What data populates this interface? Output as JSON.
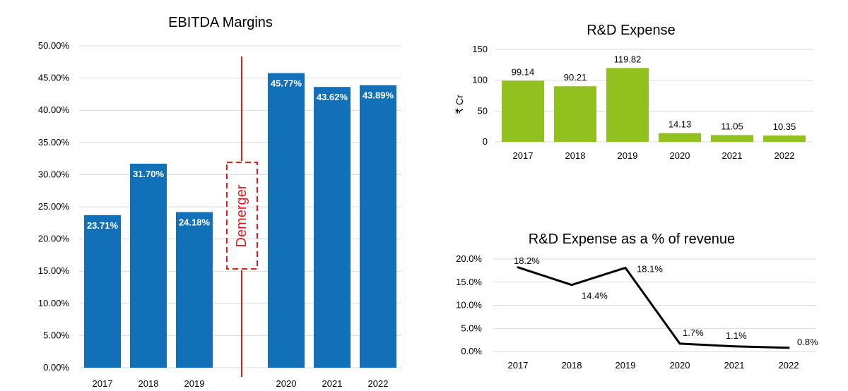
{
  "chart_data": [
    {
      "type": "bar",
      "title": "EBITDA Margins",
      "categories": [
        "2017",
        "2018",
        "2019",
        "2020",
        "2021",
        "2022"
      ],
      "values": [
        23.71,
        31.7,
        24.18,
        45.77,
        43.62,
        43.89
      ],
      "data_labels": [
        "23.71%",
        "31.70%",
        "24.18%",
        "45.77%",
        "43.62%",
        "43.89%"
      ],
      "ylim": [
        0,
        50
      ],
      "yticks": [
        "0.00%",
        "5.00%",
        "10.00%",
        "15.00%",
        "20.00%",
        "25.00%",
        "30.00%",
        "35.00%",
        "40.00%",
        "45.00%",
        "50.00%"
      ],
      "grid": true,
      "bar_color": "#1170B8",
      "annotation": {
        "text": "Demerger",
        "color": "#E8191B",
        "position": "between 2019 and 2020"
      }
    },
    {
      "type": "bar",
      "title": "R&D Expense",
      "ylabel": "₹ Cr",
      "categories": [
        "2017",
        "2018",
        "2019",
        "2020",
        "2021",
        "2022"
      ],
      "values": [
        99.14,
        90.21,
        119.82,
        14.13,
        11.05,
        10.35
      ],
      "data_labels": [
        "99.14",
        "90.21",
        "119.82",
        "14.13",
        "11.05",
        "10.35"
      ],
      "ylim": [
        0,
        150
      ],
      "yticks": [
        "0",
        "50",
        "100",
        "150"
      ],
      "grid": true,
      "bar_color": "#92C01F"
    },
    {
      "type": "line",
      "title": "R&D Expense as a % of revenue",
      "categories": [
        "2017",
        "2018",
        "2019",
        "2020",
        "2021",
        "2022"
      ],
      "values": [
        18.2,
        14.4,
        18.1,
        1.7,
        1.1,
        0.8
      ],
      "data_labels": [
        "18.2%",
        "14.4%",
        "18.1%",
        "1.7%",
        "1.1%",
        "0.8%"
      ],
      "ylim": [
        0,
        20
      ],
      "yticks": [
        "0.0%",
        "5.0%",
        "10.0%",
        "15.0%",
        "20.0%"
      ],
      "grid": true,
      "line_color": "#000000"
    }
  ]
}
